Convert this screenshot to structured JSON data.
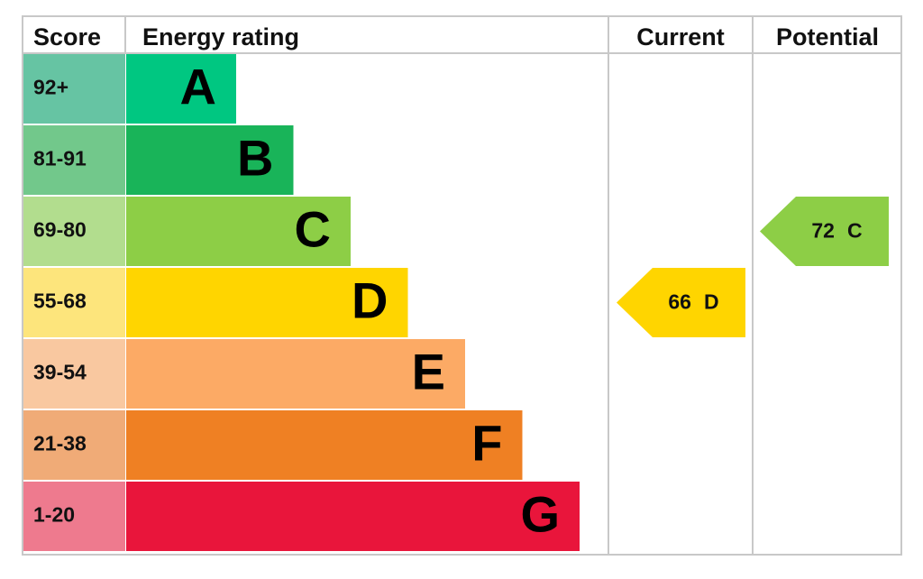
{
  "header": {
    "score": "Score",
    "rating": "Energy rating",
    "current": "Current",
    "potential": "Potential"
  },
  "bands": [
    {
      "score": "92+",
      "letter": "A",
      "score_color": "#66c4a3",
      "color": "#00c781"
    },
    {
      "score": "81-91",
      "letter": "B",
      "score_color": "#72c88b",
      "color": "#19b459"
    },
    {
      "score": "69-80",
      "letter": "C",
      "score_color": "#b2dd8e",
      "color": "#8dce46"
    },
    {
      "score": "55-68",
      "letter": "D",
      "score_color": "#fde57c",
      "color": "#ffd500"
    },
    {
      "score": "39-54",
      "letter": "E",
      "score_color": "#f9c8a0",
      "color": "#fcaa65"
    },
    {
      "score": "21-38",
      "letter": "F",
      "score_color": "#f0ab77",
      "color": "#ef8023"
    },
    {
      "score": "1-20",
      "letter": "G",
      "score_color": "#ee7a8e",
      "color": "#e9153b"
    }
  ],
  "current": {
    "value": 66,
    "letter": "D"
  },
  "potential": {
    "value": 72,
    "letter": "C"
  }
}
